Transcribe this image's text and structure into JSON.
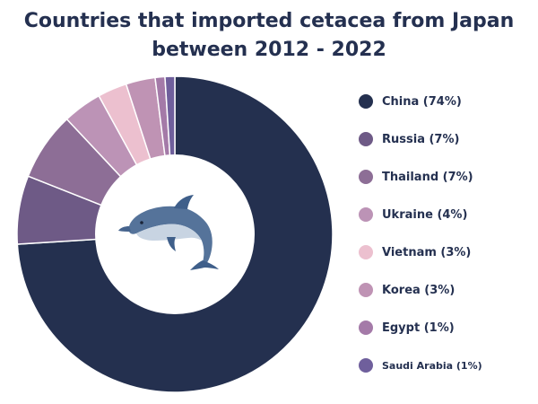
{
  "chart_data": {
    "type": "pie",
    "title_line1": "Countries that imported cetacea from Japan",
    "title_line2": "between 2012 - 2022",
    "slices": [
      {
        "label": "China (74%)",
        "value": 74,
        "color": "#24304f"
      },
      {
        "label": "Russia (7%)",
        "value": 7,
        "color": "#6e5a86"
      },
      {
        "label": "Thailand (7%)",
        "value": 7,
        "color": "#8d6e96"
      },
      {
        "label": "Ukraine (4%)",
        "value": 4,
        "color": "#bc93b6"
      },
      {
        "label": "Vietnam (3%)",
        "value": 3,
        "color": "#ecc0cf"
      },
      {
        "label": "Korea (3%)",
        "value": 3,
        "color": "#bf93b4"
      },
      {
        "label": "Egypt (1%)",
        "value": 1,
        "color": "#a47aa8"
      },
      {
        "label": "Saudi Arabia (1%)",
        "value": 1,
        "color": "#6f5f9c"
      }
    ]
  },
  "center_image": "dolphin-icon"
}
